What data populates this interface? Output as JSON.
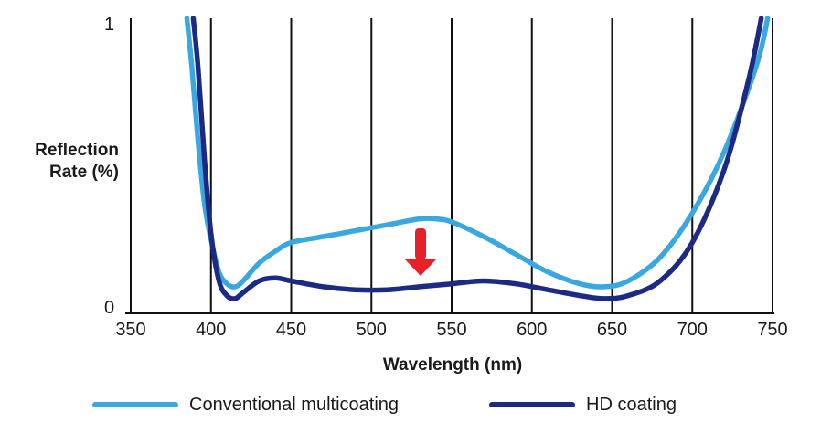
{
  "chart_data": {
    "type": "line",
    "xlabel": "Wavelength (nm)",
    "ylabel_lines": [
      "Reflection",
      "Rate (%)"
    ],
    "xlim": [
      350,
      750
    ],
    "ylim": [
      0,
      1
    ],
    "x_ticks": [
      350,
      400,
      450,
      500,
      550,
      600,
      650,
      700,
      750
    ],
    "y_ticks": [
      0,
      1
    ],
    "vertical_gridlines": true,
    "annotation": "downward red arrow",
    "series": [
      {
        "name": "Conventional multicoating",
        "color": "#3aa8e0",
        "x": [
          385,
          388,
          392,
          396,
          400,
          405,
          410,
          415,
          420,
          430,
          440,
          450,
          470,
          490,
          510,
          530,
          540,
          550,
          570,
          590,
          610,
          630,
          645,
          660,
          680,
          700,
          720,
          740,
          747
        ],
        "y": [
          1.0,
          0.84,
          0.58,
          0.37,
          0.25,
          0.14,
          0.1,
          0.09,
          0.11,
          0.17,
          0.21,
          0.24,
          0.26,
          0.28,
          0.3,
          0.32,
          0.32,
          0.31,
          0.26,
          0.2,
          0.14,
          0.1,
          0.09,
          0.11,
          0.19,
          0.34,
          0.55,
          0.84,
          1.0
        ]
      },
      {
        "name": "HD coating",
        "color": "#1c2a84",
        "x": [
          389,
          392,
          396,
          400,
          405,
          410,
          415,
          420,
          430,
          440,
          450,
          470,
          490,
          510,
          530,
          550,
          570,
          590,
          610,
          630,
          645,
          660,
          680,
          700,
          720,
          735,
          743
        ],
        "y": [
          1.0,
          0.83,
          0.52,
          0.27,
          0.11,
          0.06,
          0.05,
          0.07,
          0.11,
          0.12,
          0.11,
          0.09,
          0.08,
          0.08,
          0.09,
          0.1,
          0.11,
          0.1,
          0.08,
          0.06,
          0.05,
          0.06,
          0.11,
          0.24,
          0.49,
          0.79,
          1.0
        ]
      }
    ]
  }
}
